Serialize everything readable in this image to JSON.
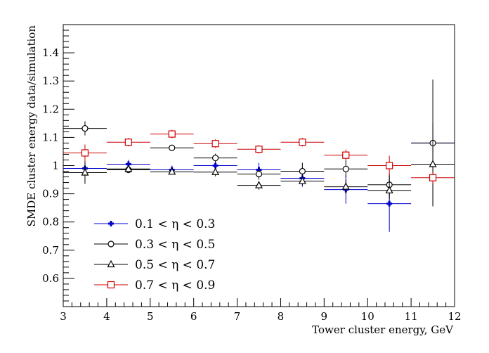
{
  "chart_data": {
    "type": "scatter",
    "xlabel": "Tower cluster energy, GeV",
    "ylabel": "SMDE cluster energy data/simulation",
    "xlim": [
      3,
      12
    ],
    "ylim": [
      0.5,
      1.5
    ],
    "x_ticks": [
      3,
      4,
      5,
      6,
      7,
      8,
      9,
      10,
      11,
      12
    ],
    "y_ticks": [
      0.6,
      0.7,
      0.8,
      0.9,
      1,
      1.1,
      1.2,
      1.3,
      1.4
    ],
    "x_bin_halfwidth": 0.5,
    "legend_placement": "bottom-left",
    "series": [
      {
        "name": "0.1 < η < 0.3",
        "color": "#0000cc",
        "marker": "cross",
        "points": [
          {
            "x": 3.5,
            "y": 0.99,
            "err": 0.02
          },
          {
            "x": 4.5,
            "y": 1.005,
            "err": 0.015
          },
          {
            "x": 5.5,
            "y": 0.985,
            "err": 0.015
          },
          {
            "x": 6.5,
            "y": 1.0,
            "err": 0.015
          },
          {
            "x": 7.5,
            "y": 0.985,
            "err": 0.025
          },
          {
            "x": 8.5,
            "y": 0.955,
            "err": 0.03
          },
          {
            "x": 9.5,
            "y": 0.915,
            "err": 0.05
          },
          {
            "x": 10.5,
            "y": 0.865,
            "err": 0.1
          },
          {
            "x": 11.5,
            "y": 1.08,
            "err": 0.03
          }
        ]
      },
      {
        "name": "0.3 < η < 0.5",
        "color": "#000000",
        "marker": "circle",
        "points": [
          {
            "x": 3.5,
            "y": 1.132,
            "err": 0.025
          },
          {
            "x": 4.5,
            "y": 0.985,
            "err": 0.01
          },
          {
            "x": 5.5,
            "y": 1.063,
            "err": 0.01
          },
          {
            "x": 6.5,
            "y": 1.027,
            "err": 0.015
          },
          {
            "x": 7.5,
            "y": 0.97,
            "err": 0.02
          },
          {
            "x": 8.5,
            "y": 0.98,
            "err": 0.03
          },
          {
            "x": 9.5,
            "y": 0.988,
            "err": 0.03
          },
          {
            "x": 10.5,
            "y": 0.932,
            "err": 0.04
          },
          {
            "x": 11.5,
            "y": 1.08,
            "err": 0.225
          }
        ]
      },
      {
        "name": "0.5 < η < 0.7",
        "color": "#000000",
        "marker": "triangle",
        "points": [
          {
            "x": 3.5,
            "y": 0.975,
            "err": 0.04
          },
          {
            "x": 4.5,
            "y": 0.988,
            "err": 0.01
          },
          {
            "x": 5.5,
            "y": 0.978,
            "err": 0.01
          },
          {
            "x": 6.5,
            "y": 0.977,
            "err": 0.015
          },
          {
            "x": 7.5,
            "y": 0.93,
            "err": 0.015
          },
          {
            "x": 8.5,
            "y": 0.945,
            "err": 0.015
          },
          {
            "x": 9.5,
            "y": 0.925,
            "err": 0.025
          },
          {
            "x": 10.5,
            "y": 0.912,
            "err": 0.03
          },
          {
            "x": 11.5,
            "y": 1.005,
            "err": 0.145
          }
        ]
      },
      {
        "name": "0.7 < η < 0.9",
        "color": "#cc0000",
        "marker": "square",
        "points": [
          {
            "x": 3.5,
            "y": 1.045,
            "err": 0.03
          },
          {
            "x": 4.5,
            "y": 1.083,
            "err": 0.015
          },
          {
            "x": 5.5,
            "y": 1.112,
            "err": 0.015
          },
          {
            "x": 6.5,
            "y": 1.078,
            "err": 0.015
          },
          {
            "x": 7.5,
            "y": 1.058,
            "err": 0.015
          },
          {
            "x": 8.5,
            "y": 1.083,
            "err": 0.015
          },
          {
            "x": 9.5,
            "y": 1.037,
            "err": 0.02
          },
          {
            "x": 10.5,
            "y": 1.0,
            "err": 0.035
          },
          {
            "x": 11.5,
            "y": 0.957,
            "err": 0.02
          }
        ]
      }
    ]
  }
}
